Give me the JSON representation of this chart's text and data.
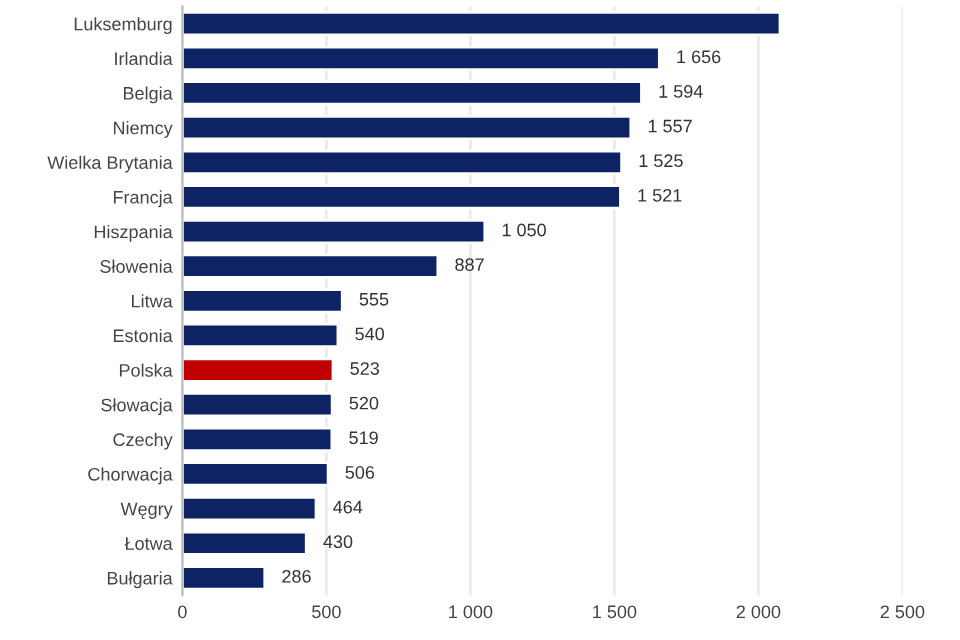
{
  "chart_data": {
    "type": "bar",
    "orientation": "horizontal",
    "categories": [
      "Luksemburg",
      "Irlandia",
      "Belgia",
      "Niemcy",
      "Wielka Brytania",
      "Francja",
      "Hiszpania",
      "Słowenia",
      "Litwa",
      "Estonia",
      "Polska",
      "Słowacja",
      "Czechy",
      "Chorwacja",
      "Węgry",
      "Łotwa",
      "Bułgaria"
    ],
    "values": [
      2075,
      1656,
      1594,
      1557,
      1525,
      1521,
      1050,
      887,
      555,
      540,
      523,
      520,
      519,
      506,
      464,
      430,
      286
    ],
    "value_labels": [
      null,
      "1 656",
      "1 594",
      "1 557",
      "1 525",
      "1 521",
      "1 050",
      "887",
      "555",
      "540",
      "523",
      "520",
      "519",
      "506",
      "464",
      "430",
      "286"
    ],
    "colors": [
      "#0e2364",
      "#0e2364",
      "#0e2364",
      "#0e2364",
      "#0e2364",
      "#0e2364",
      "#0e2364",
      "#0e2364",
      "#0e2364",
      "#0e2364",
      "#c00000",
      "#0e2364",
      "#0e2364",
      "#0e2364",
      "#0e2364",
      "#0e2364",
      "#0e2364"
    ],
    "xlim": [
      0,
      2500
    ],
    "xticks": [
      0,
      500,
      {
        "value": 1000,
        "label": "1 000"
      },
      {
        "value": 1500,
        "label": "1 500"
      },
      {
        "value": 2000,
        "label": "2 000"
      },
      {
        "value": 2500,
        "label": "2 500"
      }
    ],
    "grid": "x"
  }
}
